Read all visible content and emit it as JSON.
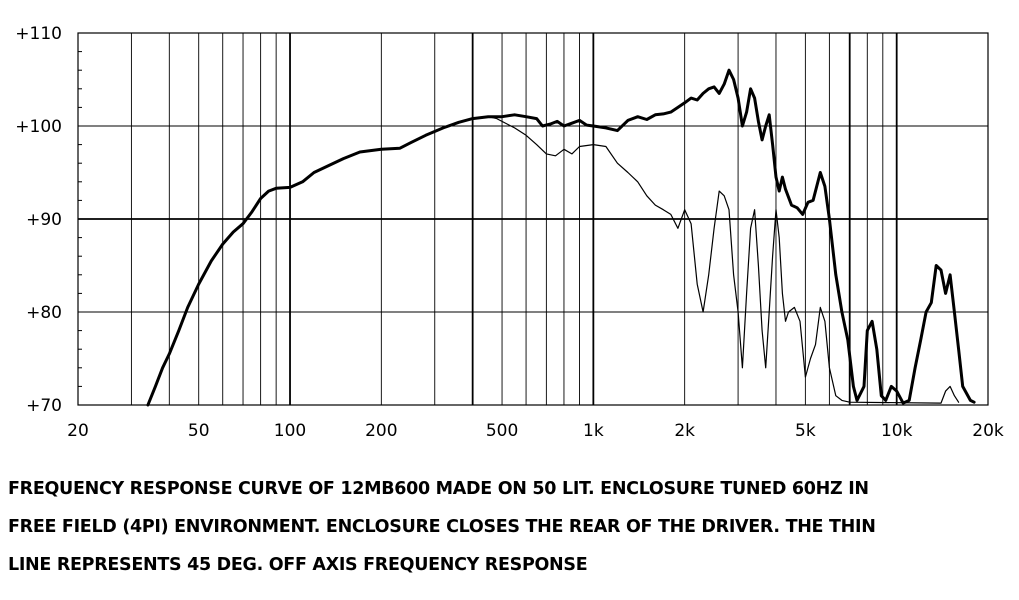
{
  "chart_data": {
    "type": "line",
    "title": "",
    "xlabel": "",
    "ylabel": "",
    "x_scale": "log",
    "xlim": [
      20,
      20000
    ],
    "ylim": [
      70,
      110
    ],
    "grid": true,
    "x_ticks": [
      {
        "value": 20,
        "label": "20"
      },
      {
        "value": 50,
        "label": "50"
      },
      {
        "value": 100,
        "label": "100"
      },
      {
        "value": 200,
        "label": "200"
      },
      {
        "value": 500,
        "label": "500"
      },
      {
        "value": 1000,
        "label": "1k"
      },
      {
        "value": 2000,
        "label": "2k"
      },
      {
        "value": 5000,
        "label": "5k"
      },
      {
        "value": 10000,
        "label": "10k"
      },
      {
        "value": 20000,
        "label": "20k"
      }
    ],
    "y_ticks": [
      {
        "value": 70,
        "label": "+70"
      },
      {
        "value": 80,
        "label": "+80"
      },
      {
        "value": 90,
        "label": "+90"
      },
      {
        "value": 100,
        "label": "+100"
      },
      {
        "value": 110,
        "label": "+110"
      }
    ],
    "series": [
      {
        "name": "",
        "style": "thick",
        "color": "#000000",
        "points": [
          [
            34,
            70
          ],
          [
            36,
            72
          ],
          [
            38,
            74
          ],
          [
            40,
            75.5
          ],
          [
            43,
            78
          ],
          [
            46,
            80.5
          ],
          [
            50,
            83
          ],
          [
            55,
            85.5
          ],
          [
            60,
            87.3
          ],
          [
            65,
            88.6
          ],
          [
            70,
            89.5
          ],
          [
            75,
            90.8
          ],
          [
            80,
            92.2
          ],
          [
            85,
            93
          ],
          [
            90,
            93.3
          ],
          [
            100,
            93.4
          ],
          [
            110,
            94
          ],
          [
            120,
            95
          ],
          [
            135,
            95.8
          ],
          [
            150,
            96.5
          ],
          [
            170,
            97.2
          ],
          [
            200,
            97.5
          ],
          [
            230,
            97.6
          ],
          [
            250,
            98.2
          ],
          [
            280,
            99
          ],
          [
            320,
            99.8
          ],
          [
            360,
            100.4
          ],
          [
            400,
            100.8
          ],
          [
            450,
            101
          ],
          [
            500,
            101
          ],
          [
            550,
            101.2
          ],
          [
            600,
            101
          ],
          [
            650,
            100.8
          ],
          [
            680,
            100
          ],
          [
            720,
            100.2
          ],
          [
            760,
            100.5
          ],
          [
            800,
            100
          ],
          [
            850,
            100.3
          ],
          [
            900,
            100.6
          ],
          [
            950,
            100.1
          ],
          [
            1000,
            100
          ],
          [
            1100,
            99.8
          ],
          [
            1200,
            99.5
          ],
          [
            1300,
            100.6
          ],
          [
            1400,
            101
          ],
          [
            1500,
            100.7
          ],
          [
            1600,
            101.2
          ],
          [
            1700,
            101.3
          ],
          [
            1800,
            101.5
          ],
          [
            1900,
            102
          ],
          [
            2000,
            102.5
          ],
          [
            2100,
            103
          ],
          [
            2200,
            102.8
          ],
          [
            2300,
            103.5
          ],
          [
            2400,
            104
          ],
          [
            2500,
            104.2
          ],
          [
            2600,
            103.5
          ],
          [
            2700,
            104.5
          ],
          [
            2800,
            106
          ],
          [
            2900,
            105
          ],
          [
            3000,
            103
          ],
          [
            3100,
            100
          ],
          [
            3200,
            101.5
          ],
          [
            3300,
            104
          ],
          [
            3400,
            103
          ],
          [
            3500,
            100.5
          ],
          [
            3600,
            98.5
          ],
          [
            3700,
            100
          ],
          [
            3800,
            101.2
          ],
          [
            3900,
            98
          ],
          [
            4000,
            94.5
          ],
          [
            4100,
            93
          ],
          [
            4200,
            94.5
          ],
          [
            4300,
            93.2
          ],
          [
            4500,
            91.5
          ],
          [
            4700,
            91.2
          ],
          [
            4900,
            90.5
          ],
          [
            5100,
            91.8
          ],
          [
            5300,
            92
          ],
          [
            5600,
            95
          ],
          [
            5800,
            93.5
          ],
          [
            6000,
            90
          ],
          [
            6300,
            84
          ],
          [
            6600,
            80
          ],
          [
            6900,
            77
          ],
          [
            7200,
            72
          ],
          [
            7400,
            70.5
          ],
          [
            7800,
            72
          ],
          [
            8000,
            78
          ],
          [
            8300,
            79
          ],
          [
            8600,
            76
          ],
          [
            8900,
            71
          ],
          [
            9200,
            70.5
          ],
          [
            9600,
            72
          ],
          [
            10000,
            71.5
          ],
          [
            10500,
            70.2
          ],
          [
            11000,
            70.5
          ],
          [
            11500,
            74
          ],
          [
            12000,
            77
          ],
          [
            12500,
            80
          ],
          [
            13000,
            81
          ],
          [
            13500,
            85
          ],
          [
            14000,
            84.5
          ],
          [
            14500,
            82
          ],
          [
            15000,
            84
          ],
          [
            15500,
            80
          ],
          [
            16000,
            76
          ],
          [
            16500,
            72
          ],
          [
            17500,
            70.5
          ],
          [
            18000,
            70.3
          ]
        ]
      },
      {
        "name": "",
        "style": "thin",
        "color": "#000000",
        "points": [
          [
            450,
            101
          ],
          [
            480,
            100.8
          ],
          [
            500,
            100.5
          ],
          [
            550,
            99.8
          ],
          [
            600,
            99
          ],
          [
            650,
            98
          ],
          [
            700,
            97
          ],
          [
            750,
            96.8
          ],
          [
            800,
            97.5
          ],
          [
            850,
            97
          ],
          [
            900,
            97.8
          ],
          [
            1000,
            98
          ],
          [
            1100,
            97.8
          ],
          [
            1200,
            96
          ],
          [
            1300,
            95
          ],
          [
            1400,
            94
          ],
          [
            1500,
            92.5
          ],
          [
            1600,
            91.5
          ],
          [
            1700,
            91
          ],
          [
            1800,
            90.5
          ],
          [
            1900,
            89
          ],
          [
            2000,
            91
          ],
          [
            2100,
            89.5
          ],
          [
            2200,
            83
          ],
          [
            2300,
            80
          ],
          [
            2400,
            84
          ],
          [
            2500,
            89
          ],
          [
            2600,
            93
          ],
          [
            2700,
            92.5
          ],
          [
            2800,
            91
          ],
          [
            2900,
            84
          ],
          [
            3000,
            80
          ],
          [
            3100,
            74
          ],
          [
            3200,
            82
          ],
          [
            3300,
            89
          ],
          [
            3400,
            91
          ],
          [
            3500,
            85
          ],
          [
            3600,
            78
          ],
          [
            3700,
            74
          ],
          [
            3800,
            80
          ],
          [
            3900,
            86
          ],
          [
            4000,
            91
          ],
          [
            4100,
            88
          ],
          [
            4200,
            82
          ],
          [
            4300,
            79
          ],
          [
            4400,
            80
          ],
          [
            4600,
            80.5
          ],
          [
            4800,
            79
          ],
          [
            5000,
            73
          ],
          [
            5200,
            75
          ],
          [
            5400,
            76.5
          ],
          [
            5600,
            80.5
          ],
          [
            5800,
            79
          ],
          [
            6000,
            74
          ],
          [
            6300,
            71
          ],
          [
            6600,
            70.5
          ],
          [
            7000,
            70.3
          ],
          [
            14000,
            70.2
          ],
          [
            14500,
            71.5
          ],
          [
            15000,
            72
          ],
          [
            15500,
            71
          ],
          [
            16000,
            70.3
          ]
        ]
      }
    ]
  },
  "caption": {
    "lines": [
      "FREQUENCY RESPONSE CURVE OF 12MB600 MADE ON 50 LIT. ENCLOSURE TUNED 60HZ IN",
      "FREE FIELD (4PI) ENVIRONMENT. ENCLOSURE CLOSES THE REAR OF THE DRIVER. THE THIN",
      "LINE REPRESENTS 45 DEG. OFF AXIS FREQUENCY RESPONSE"
    ]
  }
}
